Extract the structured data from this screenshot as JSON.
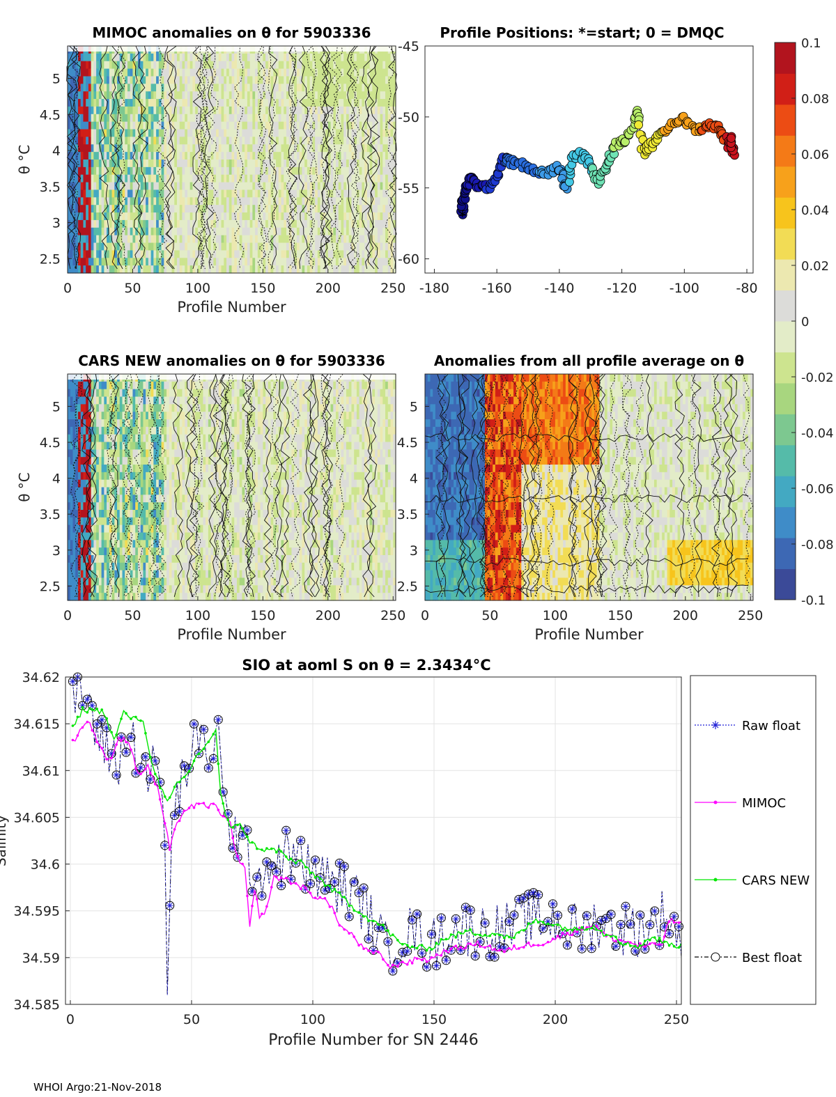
{
  "footer": "WHOI Argo:21-Nov-2018",
  "colors": {
    "raw": "#1f1fd6",
    "mimoc": "#ff00ff",
    "cars": "#00e600",
    "best": "#000000",
    "grid": "#e3e3e3"
  },
  "colormap": [
    "#3b4a98",
    "#3d68b4",
    "#3f8cc8",
    "#43a9c2",
    "#55bba9",
    "#7dc890",
    "#a8d67f",
    "#cde48f",
    "#e3ecc8",
    "#dcdcd9",
    "#ece8b0",
    "#f2dc55",
    "#f7c41c",
    "#f7a11b",
    "#f47a17",
    "#ec4c14",
    "#d11f17",
    "#b2141e"
  ],
  "chart_data": [
    {
      "type": "heatmap",
      "id": "mimoc",
      "title": "MIMOC anomalies on θ  for 5903336",
      "xlabel": "Profile Number",
      "ylabel": "θ °C",
      "xlim": [
        0,
        252
      ],
      "ylim": [
        2.3,
        5.45
      ],
      "xticks": [
        0,
        50,
        100,
        150,
        200,
        250
      ],
      "yticks": [
        2.5,
        3,
        3.5,
        4,
        4.5,
        5
      ],
      "ytick_labels": [
        "2.5",
        "3",
        "3.5",
        "4",
        "4.5",
        "5"
      ]
    },
    {
      "type": "scatter",
      "id": "positions",
      "title": "Profile Positions: *=start; 0 = DMQC",
      "xlim": [
        -183,
        -78
      ],
      "ylim": [
        -61,
        -45
      ],
      "xticks": [
        -180,
        -160,
        -140,
        -120,
        -100,
        -80
      ],
      "yticks": [
        -45,
        -50,
        -55,
        -60
      ],
      "waypoints": [
        [
          -171,
          -57
        ],
        [
          -171,
          -56
        ],
        [
          -170,
          -55
        ],
        [
          -168,
          -54.3
        ],
        [
          -166,
          -54.8
        ],
        [
          -163,
          -55
        ],
        [
          -160,
          -54.5
        ],
        [
          -158,
          -53
        ],
        [
          -155,
          -53.2
        ],
        [
          -150,
          -53.5
        ],
        [
          -145,
          -54
        ],
        [
          -140,
          -53.5
        ],
        [
          -138,
          -55
        ],
        [
          -135,
          -52.5
        ],
        [
          -131,
          -53
        ],
        [
          -128,
          -54.5
        ],
        [
          -125,
          -53.5
        ],
        [
          -122,
          -52
        ],
        [
          -118,
          -51.5
        ],
        [
          -115,
          -49.4
        ],
        [
          -113,
          -52.5
        ],
        [
          -110,
          -51.8
        ],
        [
          -106,
          -51
        ],
        [
          -101,
          -50
        ],
        [
          -96,
          -51
        ],
        [
          -92,
          -50.5
        ],
        [
          -89,
          -50.8
        ],
        [
          -86,
          -51.8
        ],
        [
          -84,
          -52.5
        ],
        [
          -85,
          -51.5
        ]
      ]
    },
    {
      "type": "heatmap",
      "id": "cars",
      "title": "CARS NEW anomalies on θ for 5903336",
      "xlabel": "Profile Number",
      "ylabel": "θ °C",
      "xlim": [
        0,
        252
      ],
      "ylim": [
        2.3,
        5.45
      ],
      "xticks": [
        0,
        50,
        100,
        150,
        200,
        250
      ],
      "yticks": [
        2.5,
        3,
        3.5,
        4,
        4.5,
        5
      ],
      "ytick_labels": [
        "2.5",
        "3",
        "3.5",
        "4",
        "4.5",
        "5"
      ]
    },
    {
      "type": "heatmap",
      "id": "avg",
      "title": "Anomalies from all profile average on θ",
      "xlabel": "Profile Number",
      "xlim": [
        0,
        252
      ],
      "ylim": [
        2.3,
        5.45
      ],
      "xticks": [
        0,
        50,
        100,
        150,
        200,
        250
      ],
      "yticks": [
        2.5,
        3,
        3.5,
        4,
        4.5,
        5
      ],
      "ytick_labels": [
        "2.5",
        "3",
        "3.5",
        "4",
        "4.5",
        "5"
      ]
    },
    {
      "type": "colorbar",
      "id": "colorbar",
      "range": [
        -0.1,
        0.1
      ],
      "ticks": [
        0.1,
        0.08,
        0.06,
        0.04,
        0.02,
        0,
        -0.02,
        -0.04,
        -0.06,
        -0.08,
        -0.1
      ],
      "tick_labels": [
        "0.1",
        "0.08",
        "0.06",
        "0.04",
        "0.02",
        "0",
        "-0.02",
        "-0.04",
        "-0.06",
        "-0.08",
        "-0.1"
      ]
    },
    {
      "type": "line",
      "id": "salinity",
      "title": "SIO at aoml S on θ = 2.3434",
      "title_unit": "°C",
      "xlabel": "Profile Number for SN 2446",
      "ylabel": "Salinity",
      "xlim": [
        -2,
        252
      ],
      "ylim": [
        34.585,
        34.62
      ],
      "xticks": [
        0,
        50,
        100,
        150,
        200,
        250
      ],
      "yticks": [
        34.585,
        34.59,
        34.595,
        34.6,
        34.605,
        34.61,
        34.615,
        34.62
      ],
      "ytick_labels": [
        "34.585",
        "34.59",
        "34.595",
        "34.6",
        "34.605",
        "34.61",
        "34.615",
        "34.62"
      ],
      "grid": true,
      "legend": [
        "Raw float",
        "MIMOC",
        "CARS NEW",
        "Best float"
      ],
      "legend_position": "outside-right",
      "series_knots": {
        "Raw float": [
          [
            1,
            34.617
          ],
          [
            4,
            34.619
          ],
          [
            8,
            34.617
          ],
          [
            12,
            34.613
          ],
          [
            16,
            34.612
          ],
          [
            20,
            34.611
          ],
          [
            24,
            34.614
          ],
          [
            28,
            34.612
          ],
          [
            32,
            34.61
          ],
          [
            36,
            34.61
          ],
          [
            39,
            34.604
          ],
          [
            40,
            34.586
          ],
          [
            42,
            34.604
          ],
          [
            46,
            34.609
          ],
          [
            50,
            34.612
          ],
          [
            55,
            34.613
          ],
          [
            58,
            34.612
          ],
          [
            61,
            34.614
          ],
          [
            63,
            34.606
          ],
          [
            66,
            34.604
          ],
          [
            70,
            34.603
          ],
          [
            74,
            34.6
          ],
          [
            78,
            34.599
          ],
          [
            84,
            34.6
          ],
          [
            90,
            34.601
          ],
          [
            96,
            34.6
          ],
          [
            100,
            34.599
          ],
          [
            108,
            34.598
          ],
          [
            114,
            34.597
          ],
          [
            120,
            34.596
          ],
          [
            126,
            34.593
          ],
          [
            130,
            34.591
          ],
          [
            136,
            34.592
          ],
          [
            142,
            34.593
          ],
          [
            148,
            34.591
          ],
          [
            152,
            34.592
          ],
          [
            158,
            34.593
          ],
          [
            164,
            34.593
          ],
          [
            170,
            34.593
          ],
          [
            176,
            34.593
          ],
          [
            182,
            34.593
          ],
          [
            188,
            34.594
          ],
          [
            194,
            34.594
          ],
          [
            200,
            34.594
          ],
          [
            206,
            34.593
          ],
          [
            212,
            34.593
          ],
          [
            218,
            34.594
          ],
          [
            224,
            34.593
          ],
          [
            230,
            34.593
          ],
          [
            236,
            34.593
          ],
          [
            242,
            34.594
          ],
          [
            246,
            34.595
          ],
          [
            249,
            34.593
          ],
          [
            252,
            34.592
          ]
        ],
        "MIMOC": [
          [
            1,
            34.613
          ],
          [
            5,
            34.6148
          ],
          [
            8,
            34.6152
          ],
          [
            12,
            34.6125
          ],
          [
            16,
            34.611
          ],
          [
            20,
            34.6135
          ],
          [
            24,
            34.6132
          ],
          [
            28,
            34.6095
          ],
          [
            32,
            34.6105
          ],
          [
            36,
            34.608
          ],
          [
            39,
            34.6045
          ],
          [
            41,
            34.6015
          ],
          [
            43,
            34.6035
          ],
          [
            46,
            34.6055
          ],
          [
            50,
            34.6062
          ],
          [
            55,
            34.6063
          ],
          [
            60,
            34.6062
          ],
          [
            62,
            34.6055
          ],
          [
            66,
            34.6042
          ],
          [
            68,
            34.6015
          ],
          [
            70,
            34.6
          ],
          [
            72,
            34.5995
          ],
          [
            74,
            34.5932
          ],
          [
            76,
            34.5975
          ],
          [
            78,
            34.5945
          ],
          [
            80,
            34.5945
          ],
          [
            84,
            34.5985
          ],
          [
            88,
            34.5985
          ],
          [
            92,
            34.598
          ],
          [
            96,
            34.5975
          ],
          [
            100,
            34.5965
          ],
          [
            104,
            34.5965
          ],
          [
            108,
            34.5952
          ],
          [
            112,
            34.5932
          ],
          [
            116,
            34.5925
          ],
          [
            120,
            34.5912
          ],
          [
            124,
            34.5905
          ],
          [
            128,
            34.5904
          ],
          [
            132,
            34.5888
          ],
          [
            136,
            34.5895
          ],
          [
            140,
            34.5895
          ],
          [
            144,
            34.59
          ],
          [
            148,
            34.5897
          ],
          [
            152,
            34.5904
          ],
          [
            156,
            34.5908
          ],
          [
            160,
            34.591
          ],
          [
            164,
            34.5913
          ],
          [
            168,
            34.5915
          ],
          [
            172,
            34.5912
          ],
          [
            176,
            34.5908
          ],
          [
            180,
            34.5907
          ],
          [
            184,
            34.5911
          ],
          [
            188,
            34.5913
          ],
          [
            192,
            34.5915
          ],
          [
            196,
            34.5916
          ],
          [
            200,
            34.592
          ],
          [
            204,
            34.5925
          ],
          [
            208,
            34.5928
          ],
          [
            212,
            34.5932
          ],
          [
            216,
            34.5935
          ],
          [
            220,
            34.5925
          ],
          [
            224,
            34.592
          ],
          [
            228,
            34.5918
          ],
          [
            232,
            34.5915
          ],
          [
            236,
            34.5912
          ],
          [
            240,
            34.5913
          ],
          [
            244,
            34.5915
          ],
          [
            247,
            34.594
          ],
          [
            252,
            34.5937
          ]
        ],
        "CARS NEW": [
          [
            1,
            34.6145
          ],
          [
            5,
            34.6165
          ],
          [
            10,
            34.6165
          ],
          [
            14,
            34.6162
          ],
          [
            18,
            34.6132
          ],
          [
            22,
            34.6162
          ],
          [
            26,
            34.6155
          ],
          [
            30,
            34.6155
          ],
          [
            32,
            34.6125
          ],
          [
            36,
            34.609
          ],
          [
            40,
            34.6065
          ],
          [
            44,
            34.6085
          ],
          [
            48,
            34.6095
          ],
          [
            52,
            34.6115
          ],
          [
            56,
            34.6128
          ],
          [
            60,
            34.6142
          ],
          [
            62,
            34.6075
          ],
          [
            64,
            34.605
          ],
          [
            66,
            34.604
          ],
          [
            70,
            34.6045
          ],
          [
            72,
            34.603
          ],
          [
            76,
            34.602
          ],
          [
            80,
            34.6015
          ],
          [
            86,
            34.6015
          ],
          [
            90,
            34.6005
          ],
          [
            96,
            34.6
          ],
          [
            100,
            34.599
          ],
          [
            104,
            34.5982
          ],
          [
            108,
            34.5972
          ],
          [
            112,
            34.5965
          ],
          [
            116,
            34.5955
          ],
          [
            120,
            34.5948
          ],
          [
            124,
            34.594
          ],
          [
            128,
            34.5935
          ],
          [
            132,
            34.5925
          ],
          [
            136,
            34.5915
          ],
          [
            140,
            34.5912
          ],
          [
            146,
            34.591
          ],
          [
            150,
            34.5912
          ],
          [
            154,
            34.592
          ],
          [
            160,
            34.5925
          ],
          [
            164,
            34.5928
          ],
          [
            170,
            34.5925
          ],
          [
            176,
            34.5926
          ],
          [
            182,
            34.592
          ],
          [
            188,
            34.5932
          ],
          [
            192,
            34.594
          ],
          [
            196,
            34.5938
          ],
          [
            200,
            34.5935
          ],
          [
            204,
            34.5932
          ],
          [
            208,
            34.593
          ],
          [
            212,
            34.5932
          ],
          [
            216,
            34.5935
          ],
          [
            220,
            34.5925
          ],
          [
            224,
            34.5925
          ],
          [
            228,
            34.5915
          ],
          [
            234,
            34.5912
          ],
          [
            240,
            34.5922
          ],
          [
            246,
            34.5915
          ],
          [
            252,
            34.5912
          ]
        ]
      }
    }
  ]
}
